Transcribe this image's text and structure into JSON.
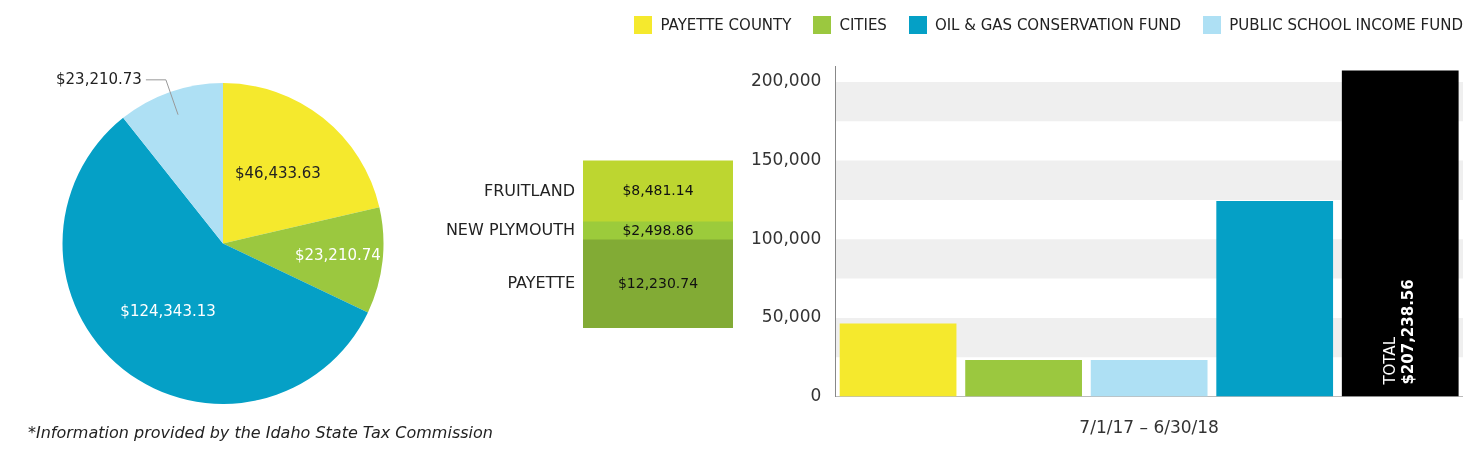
{
  "chart_data": [
    {
      "type": "pie",
      "categories": [
        "PAYETTE COUNTY",
        "CITIES",
        "OIL & GAS CONSERVATION FUND",
        "PUBLIC SCHOOL INCOME FUND"
      ],
      "values": [
        46433.63,
        23210.74,
        124343.13,
        23210.73
      ],
      "colors": [
        "#f5e92d",
        "#9bc83f",
        "#05a0c6",
        "#aee0f4"
      ],
      "value_labels": [
        "$46,433.63",
        "$23,210.74",
        "$124,343.13",
        "$23,210.73"
      ],
      "legend": "top right",
      "annotations": [
        "*Information provided by the Idaho State Tax Commission"
      ]
    },
    {
      "type": "bar",
      "stacked": true,
      "categories": [
        null
      ],
      "series": [
        {
          "name": "PAYETTE",
          "color": "#82ab35",
          "values": [
            12230.74
          ],
          "value_labels": [
            "$12,230.74"
          ]
        },
        {
          "name": "NEW PLYMOUTH",
          "color": "#9ccb3b",
          "values": [
            2498.86
          ],
          "value_labels": [
            "$2,498.86"
          ]
        },
        {
          "name": "FRUITLAND",
          "color": "#bdd630",
          "values": [
            8481.14
          ],
          "value_labels": [
            "$8,481.14"
          ]
        }
      ]
    },
    {
      "type": "bar",
      "categories": [
        null,
        null,
        null,
        null,
        null
      ],
      "values": [
        46433.63,
        23210.74,
        23210.73,
        124343.13,
        207238.56
      ],
      "colors": [
        "#f5e92d",
        "#9bc83f",
        "#aee0f4",
        "#05a0c6",
        "#000000"
      ],
      "value_labels": [
        null,
        null,
        null,
        null,
        "TOTAL $207,238.56"
      ],
      "xlabel": "7/1/17 – 6/30/18",
      "ylim": [
        0,
        210000
      ],
      "yticks": [
        {
          "value": 0,
          "label": "0"
        },
        {
          "value": 50000,
          "label": "50,000"
        },
        {
          "value": 100000,
          "label": "100,000"
        },
        {
          "value": 150000,
          "label": "150,000"
        },
        {
          "value": 200000,
          "label": "200,000"
        }
      ],
      "bands": [
        {
          "axis": "y",
          "from": 25000,
          "to": 50000,
          "color": "#efefef"
        },
        {
          "axis": "y",
          "from": 75000,
          "to": 100000,
          "color": "#efefef"
        },
        {
          "axis": "y",
          "from": 125000,
          "to": 150000,
          "color": "#efefef"
        },
        {
          "axis": "y",
          "from": 175000,
          "to": 200000,
          "color": "#efefef"
        }
      ],
      "grid": false
    }
  ]
}
